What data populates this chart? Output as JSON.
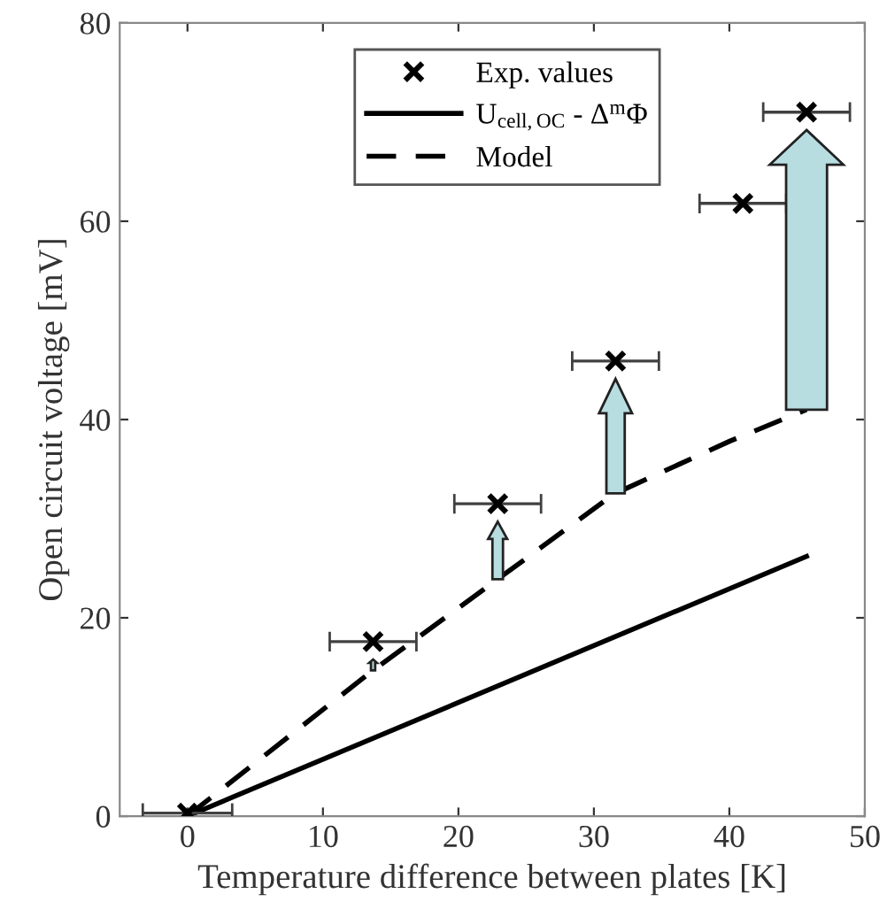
{
  "chart_data": {
    "type": "line",
    "xlabel": "Temperature difference between plates [K]",
    "ylabel": "Open circuit voltage [mV]",
    "xlim": [
      -5,
      50
    ],
    "xticks": [
      0,
      10,
      20,
      30,
      40,
      50
    ],
    "ylim": [
      0,
      80
    ],
    "yticks": [
      0,
      20,
      40,
      60,
      80
    ],
    "grid": false,
    "legend": "top",
    "series": [
      {
        "name": "Exp. values",
        "type": "scatter",
        "marker": "cross",
        "color": "#000000",
        "x": [
          0,
          13.7,
          22.9,
          31.6,
          41.0,
          45.7
        ],
        "values": [
          0.3,
          17.6,
          31.5,
          45.9,
          61.8,
          71.0
        ],
        "xerrors": [
          3.3,
          3.2,
          3.2,
          3.2,
          3.2,
          3.2
        ]
      },
      {
        "name": "U$_{cell,OC}$ - Δ$^{m}$Φ",
        "line_style": "solid",
        "color": "#000000",
        "x": [
          0,
          45.7
        ],
        "values": [
          0,
          26.2
        ]
      },
      {
        "name": "Model",
        "line_style": "dashed",
        "color": "#000000",
        "x": [
          0,
          13.5,
          22.5,
          31.5,
          40.0,
          45.7
        ],
        "values": [
          0,
          14.5,
          23.5,
          32.5,
          37.8,
          41.0
        ]
      }
    ]
  }
}
